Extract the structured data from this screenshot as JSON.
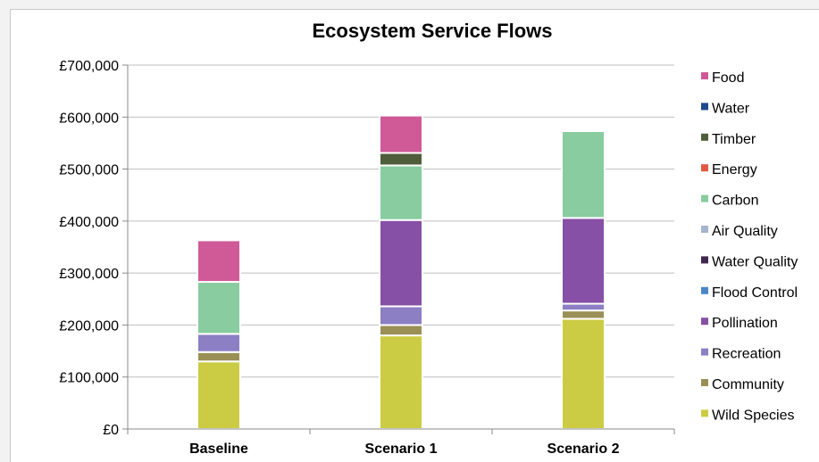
{
  "chart_data": {
    "type": "bar",
    "stacked": true,
    "title": "Ecosystem Service Flows",
    "xlabel": "",
    "ylabel": "",
    "categories": [
      "Baseline",
      "Scenario 1",
      "Scenario 2"
    ],
    "ylim": [
      0,
      700000
    ],
    "y_ticks": [
      "£0",
      "£100,000",
      "£200,000",
      "£300,000",
      "£400,000",
      "£500,000",
      "£600,000",
      "£700,000"
    ],
    "grid": true,
    "legend_position": "right",
    "series": [
      {
        "name": "Wild Species",
        "color": "#cccc44",
        "values": [
          130000,
          180000,
          212000
        ]
      },
      {
        "name": "Community",
        "color": "#9a9056",
        "values": [
          18000,
          20000,
          16000
        ]
      },
      {
        "name": "Recreation",
        "color": "#8c7fc4",
        "values": [
          35000,
          36000,
          13000
        ]
      },
      {
        "name": "Pollination",
        "color": "#8650a6",
        "values": [
          0,
          166000,
          165000
        ]
      },
      {
        "name": "Flood Control",
        "color": "#4a86c6",
        "values": [
          0,
          0,
          0
        ]
      },
      {
        "name": "Water Quality",
        "color": "#40294f",
        "values": [
          0,
          0,
          0
        ]
      },
      {
        "name": "Air Quality",
        "color": "#a6b5cc",
        "values": [
          0,
          0,
          0
        ]
      },
      {
        "name": "Carbon",
        "color": "#88cca0",
        "values": [
          100000,
          105000,
          167000
        ]
      },
      {
        "name": "Energy",
        "color": "#e05a40",
        "values": [
          0,
          0,
          0
        ]
      },
      {
        "name": "Timber",
        "color": "#4e5e3a",
        "values": [
          0,
          24000,
          0
        ]
      },
      {
        "name": "Water",
        "color": "#1c4a8c",
        "values": [
          0,
          0,
          0
        ]
      },
      {
        "name": "Food",
        "color": "#d05a98",
        "values": [
          80000,
          72000,
          0
        ]
      }
    ]
  }
}
